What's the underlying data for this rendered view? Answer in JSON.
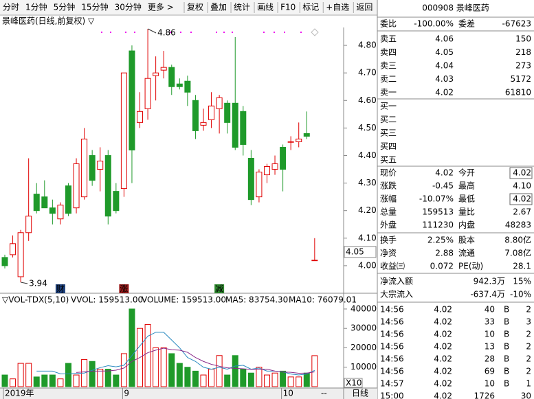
{
  "toolbar": {
    "periods": [
      "分时",
      "1分钟",
      "5分钟",
      "15分钟",
      "30分钟",
      "更多 >"
    ],
    "buttons": [
      "复权",
      "叠加",
      "统计",
      "画线",
      "F10",
      "标记",
      "+自选",
      "返回"
    ]
  },
  "kline": {
    "type": "candlestick",
    "title": "景峰医药(日线,前复权) ▽",
    "ylim": [
      3.905,
      4.865
    ],
    "yticks": [
      {
        "value": 4,
        "label": "4.00"
      },
      {
        "value": 4.1,
        "label": "4.10"
      },
      {
        "value": 4.2,
        "label": "4.20"
      },
      {
        "value": 4.3,
        "label": "4.30"
      },
      {
        "value": 4.4,
        "label": "4.40"
      },
      {
        "value": 4.5,
        "label": "4.50"
      },
      {
        "value": 4.6,
        "label": "4.60"
      },
      {
        "value": 4.7,
        "label": "4.70"
      },
      {
        "value": 4.8,
        "label": "4.80"
      }
    ],
    "high_mark": 4.86,
    "low_mark": 3.94,
    "cursor_price": 4.05,
    "candles": [
      {
        "o": 4.03,
        "h": 4.04,
        "l": 3.99,
        "c": 4.0,
        "axis_label": "2019年"
      },
      {
        "o": 4.04,
        "h": 4.11,
        "l": 4.03,
        "c": 4.08
      },
      {
        "o": 3.96,
        "h": 4.13,
        "l": 3.94,
        "c": 4.12
      },
      {
        "o": 4.12,
        "h": 4.39,
        "l": 4.09,
        "c": 4.18
      },
      {
        "o": 4.26,
        "h": 4.3,
        "l": 4.19,
        "c": 4.2
      },
      {
        "o": 4.25,
        "h": 4.31,
        "l": 4.21,
        "c": 4.21
      },
      {
        "o": 4.21,
        "h": 4.24,
        "l": 4.15,
        "c": 4.19
      },
      {
        "o": 4.17,
        "h": 4.23,
        "l": 4.15,
        "c": 4.22,
        "event": "财"
      },
      {
        "o": 4.29,
        "h": 4.3,
        "l": 4.18,
        "c": 4.19
      },
      {
        "o": 4.21,
        "h": 4.39,
        "l": 4.19,
        "c": 4.37
      },
      {
        "o": 4.25,
        "h": 4.5,
        "l": 4.24,
        "c": 4.46
      },
      {
        "o": 4.4,
        "h": 4.42,
        "l": 4.29,
        "c": 4.31
      },
      {
        "o": 4.35,
        "h": 4.43,
        "l": 4.27,
        "c": 4.38
      },
      {
        "o": 4.4,
        "h": 4.42,
        "l": 4.15,
        "c": 4.18
      },
      {
        "o": 4.27,
        "h": 4.3,
        "l": 4.19,
        "c": 4.2
      },
      {
        "o": 4.28,
        "h": 4.7,
        "l": 4.25,
        "c": 4.7,
        "event": "涨",
        "axis_label": "9"
      },
      {
        "o": 4.78,
        "h": 4.8,
        "l": 4.3,
        "c": 4.42
      },
      {
        "o": 4.52,
        "h": 4.63,
        "l": 4.5,
        "c": 4.56
      },
      {
        "o": 4.57,
        "h": 4.86,
        "l": 4.53,
        "c": 4.68
      },
      {
        "o": 4.69,
        "h": 4.76,
        "l": 4.6,
        "c": 4.7
      },
      {
        "o": 4.71,
        "h": 4.78,
        "l": 4.68,
        "c": 4.72
      },
      {
        "o": 4.72,
        "h": 4.73,
        "l": 4.62,
        "c": 4.65
      },
      {
        "o": 4.66,
        "h": 4.68,
        "l": 4.64,
        "c": 4.65
      },
      {
        "o": 4.67,
        "h": 4.69,
        "l": 4.58,
        "c": 4.63
      },
      {
        "o": 4.6,
        "h": 4.62,
        "l": 4.46,
        "c": 4.49
      },
      {
        "o": 4.51,
        "h": 4.57,
        "l": 4.49,
        "c": 4.52
      },
      {
        "o": 4.53,
        "h": 4.63,
        "l": 4.5,
        "c": 4.58
      },
      {
        "o": 4.57,
        "h": 4.62,
        "l": 4.48,
        "c": 4.61,
        "event": "减"
      },
      {
        "o": 4.59,
        "h": 4.6,
        "l": 4.48,
        "c": 4.52
      },
      {
        "o": 4.59,
        "h": 4.83,
        "l": 4.42,
        "c": 4.43
      },
      {
        "o": 4.56,
        "h": 4.58,
        "l": 4.4,
        "c": 4.44
      },
      {
        "o": 4.39,
        "h": 4.42,
        "l": 4.22,
        "c": 4.24
      },
      {
        "o": 4.25,
        "h": 4.35,
        "l": 4.23,
        "c": 4.34
      },
      {
        "o": 4.33,
        "h": 4.37,
        "l": 4.3,
        "c": 4.36
      },
      {
        "o": 4.35,
        "h": 4.4,
        "l": 4.33,
        "c": 4.37
      },
      {
        "o": 4.43,
        "h": 4.44,
        "l": 4.27,
        "c": 4.35,
        "axis_label": "10"
      },
      {
        "o": 4.45,
        "h": 4.47,
        "l": 4.42,
        "c": 4.45
      },
      {
        "o": 4.45,
        "h": 4.52,
        "l": 4.43,
        "c": 4.46
      },
      {
        "o": 4.48,
        "h": 4.56,
        "l": 4.46,
        "c": 4.47
      },
      {
        "o": 4.02,
        "h": 4.1,
        "l": 4.02,
        "c": 4.02
      }
    ]
  },
  "volume": {
    "header": [
      "▽VOL-TDX(5,10)",
      "VVOL: 159513.00",
      "VOLUME: 159513.00",
      "MA5: 83754.30",
      "MA10: 76079.01"
    ],
    "ylim": [
      0,
      42100
    ],
    "yticks": [
      10000,
      20000,
      30000,
      40000
    ],
    "unit_label": "X10",
    "values": [
      6000,
      4000,
      12000,
      12000,
      5000,
      6000,
      6000,
      4000,
      12000,
      6000,
      14000,
      13000,
      9000,
      9000,
      6000,
      17000,
      40000,
      30000,
      32000,
      20000,
      20000,
      17000,
      12000,
      10000,
      8000,
      6000,
      9000,
      16000,
      6000,
      16000,
      9000,
      7000,
      10000,
      6000,
      7000,
      8000,
      5000,
      5000,
      7000,
      15951
    ],
    "ma5": [
      null,
      null,
      null,
      null,
      8000,
      8000,
      8000,
      6600,
      6600,
      6800,
      7000,
      8400,
      9800,
      10800,
      10200,
      11000,
      16000,
      21000,
      26000,
      28000,
      28000,
      24000,
      20000,
      15000,
      13000,
      10000,
      9000,
      10000,
      9000,
      10600,
      11000,
      9000,
      9600,
      8000,
      8000,
      7600,
      6500,
      6000,
      6500,
      8375
    ],
    "ma10": [
      null,
      null,
      null,
      null,
      null,
      null,
      null,
      null,
      null,
      7300,
      7600,
      8000,
      8000,
      8100,
      8500,
      9600,
      13000,
      15000,
      17500,
      18800,
      19800,
      19000,
      18800,
      17700,
      15000,
      13000,
      11500,
      10500,
      9700,
      9400,
      9200,
      8900,
      8900,
      9000,
      8000,
      7500,
      7400,
      6900,
      7000,
      7608
    ]
  },
  "bottom_bar": {
    "right_labels": [
      "--",
      "日线"
    ]
  },
  "quote": {
    "code_title": "000908 景峰医药",
    "weibi": [
      "委比",
      "-100.00%",
      "委差",
      "-67623"
    ],
    "sell": [
      [
        "卖五",
        "4.06",
        "150"
      ],
      [
        "卖四",
        "4.05",
        "218"
      ],
      [
        "卖三",
        "4.04",
        "273"
      ],
      [
        "卖二",
        "4.03",
        "5172"
      ],
      [
        "卖一",
        "4.02",
        "61810"
      ]
    ],
    "buy": [
      "买一",
      "买二",
      "买三",
      "买四",
      "买五"
    ],
    "stats": [
      [
        "现价",
        "4.02",
        "今开",
        "4.02"
      ],
      [
        "涨跌",
        "-0.45",
        "最高",
        "4.10"
      ],
      [
        "涨幅",
        "-10.07%",
        "最低",
        "4.02"
      ],
      [
        "总量",
        "159513",
        "量比",
        "2.67"
      ],
      [
        "外盘",
        "111230",
        "内盘",
        "48283"
      ]
    ],
    "fund": [
      [
        "换手",
        "2.25%",
        "股本",
        "8.80亿"
      ],
      [
        "净资",
        "2.88",
        "流通",
        "7.08亿"
      ],
      [
        "收益㈢",
        "0.072",
        "PE(动)",
        "28.1"
      ]
    ],
    "flow": [
      [
        "净流入额",
        "942.3万",
        "15%"
      ],
      [
        "大宗流入",
        "-637.4万",
        "-10%"
      ]
    ],
    "trades": [
      [
        "14:56",
        "4.02",
        "40",
        "B",
        "2"
      ],
      [
        "14:56",
        "4.02",
        "33",
        "B",
        "3"
      ],
      [
        "14:56",
        "4.02",
        "10",
        "B",
        "2"
      ],
      [
        "14:56",
        "4.02",
        "13",
        "B",
        "2"
      ],
      [
        "14:56",
        "4.02",
        "28",
        "B",
        "2"
      ],
      [
        "14:56",
        "4.02",
        "69",
        "B",
        "2"
      ],
      [
        "14:57",
        "4.02",
        "10",
        "B",
        "1"
      ],
      [
        "15:00",
        "4.02",
        "1726",
        "30"
      ]
    ]
  }
}
